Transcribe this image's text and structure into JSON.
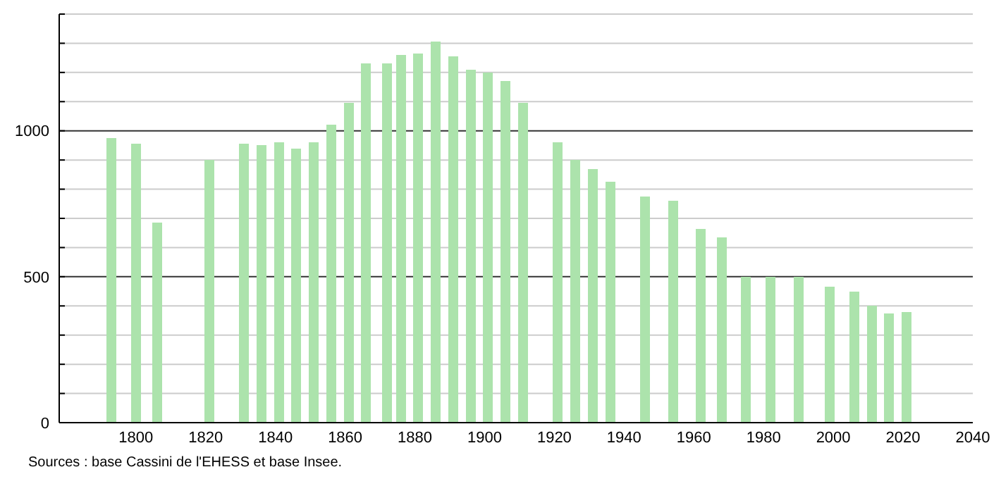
{
  "chart_data": {
    "type": "bar",
    "color": "#ace3ac",
    "x": [
      1793,
      1800,
      1806,
      1821,
      1831,
      1836,
      1841,
      1846,
      1851,
      1856,
      1861,
      1866,
      1872,
      1876,
      1881,
      1886,
      1891,
      1896,
      1901,
      1906,
      1911,
      1921,
      1926,
      1931,
      1936,
      1946,
      1954,
      1962,
      1968,
      1975,
      1982,
      1990,
      1999,
      2006,
      2011,
      2016,
      2021
    ],
    "values": [
      975,
      955,
      685,
      900,
      955,
      950,
      960,
      940,
      960,
      1020,
      1095,
      1230,
      1230,
      1260,
      1265,
      1305,
      1255,
      1210,
      1200,
      1170,
      1095,
      960,
      900,
      870,
      825,
      775,
      760,
      665,
      635,
      500,
      500,
      500,
      465,
      450,
      400,
      375,
      380
    ],
    "xlim": [
      1778,
      2040
    ],
    "xticks": [
      1800,
      1820,
      1840,
      1860,
      1880,
      1900,
      1920,
      1940,
      1960,
      1980,
      2000,
      2020,
      2040
    ],
    "ylim": [
      0,
      1400
    ],
    "yticks": [
      0,
      {
        "value": 100,
        "label": null
      },
      {
        "value": 200,
        "label": null
      },
      {
        "value": 300,
        "label": null
      },
      {
        "value": 400,
        "label": null
      },
      500,
      {
        "value": 600,
        "label": null
      },
      {
        "value": 700,
        "label": null
      },
      {
        "value": 800,
        "label": null
      },
      {
        "value": 900,
        "label": null
      },
      1000,
      {
        "value": 1100,
        "label": null
      },
      {
        "value": 1200,
        "label": null
      },
      {
        "value": 1300,
        "label": null
      },
      {
        "value": 1400,
        "label": null
      }
    ],
    "grid": "y",
    "annotations": [
      "Sources : base Cassini de l'EHESS et base Insee."
    ]
  }
}
